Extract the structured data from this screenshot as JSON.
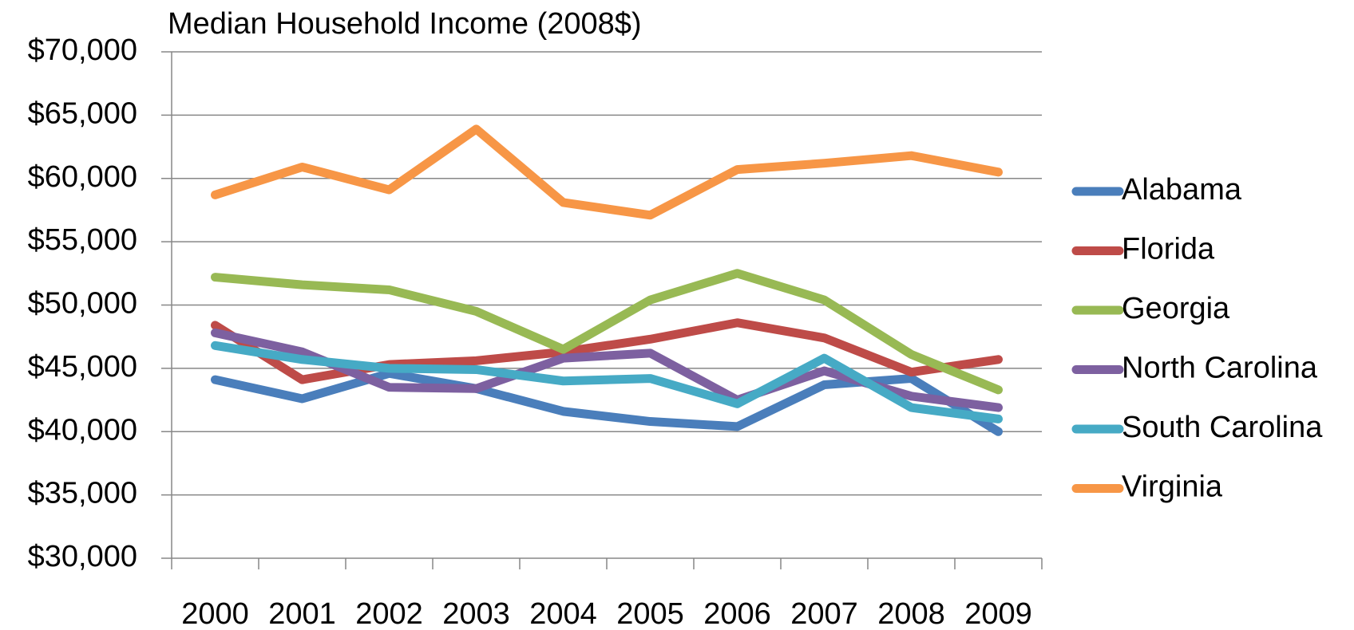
{
  "chart_data": {
    "type": "line",
    "title": "Median Household Income (2008$)",
    "categories": [
      "2000",
      "2001",
      "2002",
      "2003",
      "2004",
      "2005",
      "2006",
      "2007",
      "2008",
      "2009"
    ],
    "series": [
      {
        "name": "Alabama",
        "color": "#4a7ebb",
        "values": [
          44100,
          42600,
          44600,
          43400,
          41600,
          40800,
          40400,
          43700,
          44200,
          40000
        ]
      },
      {
        "name": "Florida",
        "color": "#be4b48",
        "values": [
          48400,
          44100,
          45300,
          45600,
          46300,
          47300,
          48600,
          47400,
          44700,
          45700
        ]
      },
      {
        "name": "Georgia",
        "color": "#98b954",
        "values": [
          52200,
          51600,
          51200,
          49500,
          46500,
          50400,
          52500,
          50400,
          46100,
          43300
        ]
      },
      {
        "name": "North Carolina",
        "color": "#7d60a0",
        "values": [
          47800,
          46300,
          43500,
          43400,
          45800,
          46200,
          42500,
          44800,
          42800,
          41900
        ]
      },
      {
        "name": "South Carolina",
        "color": "#46aac5",
        "values": [
          46800,
          45700,
          45000,
          44900,
          44000,
          44200,
          42200,
          45800,
          41900,
          41000
        ]
      },
      {
        "name": "Virginia",
        "color": "#f79646",
        "values": [
          58700,
          60900,
          59100,
          63900,
          58100,
          57100,
          60700,
          61200,
          61800,
          60500
        ]
      }
    ],
    "ylim": [
      30000,
      70000
    ],
    "yticks": [
      {
        "value": 30000,
        "label": "$30,000"
      },
      {
        "value": 35000,
        "label": "$35,000"
      },
      {
        "value": 40000,
        "label": "$40,000"
      },
      {
        "value": 45000,
        "label": "$45,000"
      },
      {
        "value": 50000,
        "label": "$50,000"
      },
      {
        "value": 55000,
        "label": "$55,000"
      },
      {
        "value": 60000,
        "label": "$60,000"
      },
      {
        "value": 65000,
        "label": "$65,000"
      },
      {
        "value": 70000,
        "label": "$70,000"
      }
    ],
    "grid": true,
    "legend": "right"
  }
}
